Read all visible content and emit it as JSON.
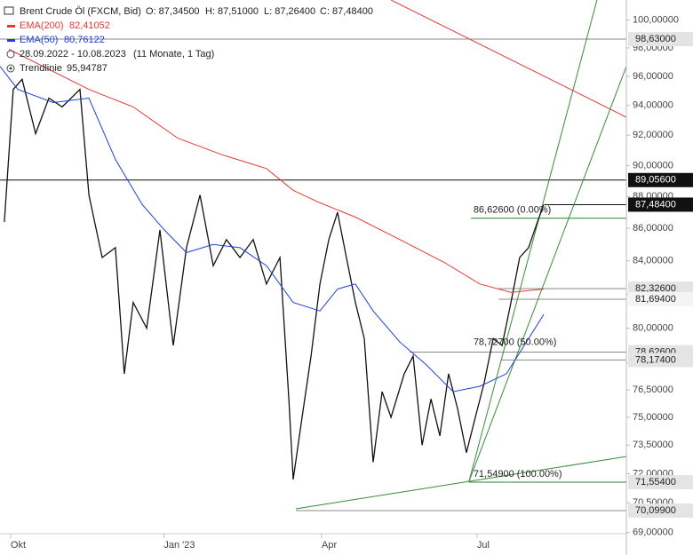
{
  "chart_data": {
    "type": "line",
    "quote": [
      "O: 87,34500",
      "H: 87,51000",
      "L: 87,26400",
      "C: 87,48400"
    ],
    "date_range": "28.09.2022 - 10.08.2023",
    "duration": "(11 Monate, 1 Tag)",
    "trendline_name": "Trendlinie",
    "trendline_value": "95,94787",
    "log_scale": true,
    "xlim": [
      0,
      260
    ],
    "xticks": [
      {
        "value": 4.4,
        "label": "Okt"
      },
      {
        "value": 68,
        "label": "Jan '23"
      },
      {
        "value": 133.5,
        "label": "Apr"
      },
      {
        "value": 198,
        "label": "Jul"
      }
    ],
    "ylim": [
      68.98,
      101.46
    ],
    "yticks": [
      {
        "value": 100,
        "label": "100,00000"
      },
      {
        "value": 98,
        "label": "98,00000"
      },
      {
        "value": 96,
        "label": "96,00000"
      },
      {
        "value": 94,
        "label": "94,00000"
      },
      {
        "value": 92,
        "label": "92,00000"
      },
      {
        "value": 90,
        "label": "90,00000"
      },
      {
        "value": 88,
        "label": "88,00000"
      },
      {
        "value": 86,
        "label": "86,00000"
      },
      {
        "value": 84,
        "label": "84,00000"
      },
      {
        "value": 82,
        "label": "82,00000"
      },
      {
        "value": 80,
        "label": "80,00000"
      },
      {
        "value": 78,
        "label": "78,00000"
      },
      {
        "value": 76.5,
        "label": "76,50000"
      },
      {
        "value": 75,
        "label": "75,00000"
      },
      {
        "value": 73.5,
        "label": "73,50000"
      },
      {
        "value": 72,
        "label": "72,00000"
      },
      {
        "value": 70.5,
        "label": "70,50000"
      },
      {
        "value": 69,
        "label": "69,00000"
      }
    ],
    "series": [
      {
        "name": "Brent Crude Öl (FXCM, Bid)",
        "color": "#111111",
        "x": [
          1.8,
          5.5,
          9.2,
          14.8,
          20.3,
          25.8,
          33.2,
          36.9,
          42.4,
          47.9,
          51.6,
          55.3,
          60.9,
          66.4,
          71.9,
          77.4,
          83,
          88.5,
          94,
          99.6,
          105.1,
          110.6,
          116.2,
          119.9,
          121.7,
          125.4,
          129.1,
          132.8,
          136.5,
          140.1,
          143.8,
          147.5,
          151.2,
          154.9,
          158.6,
          162.3,
          167.8,
          171.5,
          175.2,
          178.9,
          182.6,
          186.2,
          189.9,
          193.6,
          197.3,
          201,
          204.7,
          208.4,
          212.1,
          215.7,
          219.4,
          223.1,
          225.7
        ],
        "values": [
          86.4,
          95.1,
          95.8,
          92.1,
          94.5,
          93.9,
          95.1,
          88.1,
          84.2,
          84.8,
          77.4,
          81.5,
          80.0,
          85.9,
          79.0,
          84.8,
          88.1,
          83.7,
          85.3,
          84.2,
          85.3,
          82.6,
          84.2,
          76.0,
          71.7,
          75.0,
          78.4,
          82.6,
          85.3,
          87.0,
          84.2,
          81.5,
          79.4,
          72.6,
          76.4,
          75.0,
          77.4,
          78.4,
          73.5,
          76.0,
          74.0,
          77.4,
          75.5,
          73.1,
          75.0,
          76.9,
          79.4,
          79.0,
          81.5,
          84.2,
          84.8,
          86.4,
          87.48
        ]
      },
      {
        "name": "EMA(200)",
        "legend_value": "82,41052",
        "color": "#e53935",
        "x": [
          3.7,
          36.9,
          55.3,
          73.8,
          92.2,
          110.6,
          121.7,
          132.8,
          147.5,
          166,
          184.4,
          199.2,
          212.1,
          225.7
        ],
        "values": [
          97.9,
          95.1,
          93.9,
          91.8,
          90.7,
          89.8,
          88.4,
          87.6,
          86.7,
          85.3,
          83.9,
          82.6,
          82.1,
          82.3
        ]
      },
      {
        "name": "EMA(50)",
        "legend_value": "80,76122",
        "color": "#1e40d0",
        "x": [
          0,
          7.4,
          22.1,
          36.9,
          47.9,
          59,
          68.2,
          77.4,
          88.5,
          99.6,
          110.6,
          121.7,
          132.8,
          140.1,
          147.5,
          154.9,
          166,
          177,
          188.1,
          199.2,
          210.2,
          217.6,
          225.7
        ],
        "values": [
          96.7,
          95.1,
          94.2,
          94.5,
          90.4,
          87.5,
          85.9,
          84.5,
          85.0,
          84.8,
          83.7,
          81.5,
          81.0,
          82.3,
          82.6,
          81.0,
          79.2,
          77.9,
          76.4,
          76.7,
          77.4,
          79.0,
          80.8
        ]
      }
    ],
    "levels": [
      {
        "value": 98.63,
        "label": "98,63000",
        "from": 0,
        "color": "#888888",
        "box": "#e4e4e4"
      },
      {
        "value": 89.056,
        "label": "89,05600",
        "from": 0,
        "color": "#111111",
        "box": "#111111"
      },
      {
        "value": 87.484,
        "label": "87,48400",
        "from": 226,
        "color": "#111111",
        "box": "#111111"
      },
      {
        "value": 86.626,
        "from": 195.5,
        "color": "#2e7d32"
      },
      {
        "value": 82.326,
        "label": "82,32600",
        "from": 207,
        "color": "#888888",
        "box": "#e4e4e4"
      },
      {
        "value": 81.694,
        "label": "81,69400",
        "from": 207,
        "color": "#888888",
        "box": "#f4f4f4"
      },
      {
        "value": 78.626,
        "label": "78,62600",
        "from": 170,
        "color": "#888888",
        "box": "#e4e4e4"
      },
      {
        "value": 78.174,
        "label": "78,17400",
        "from": 208,
        "color": "#888888",
        "box": "#e4e4e4"
      },
      {
        "value": 71.554,
        "label": "71,55400",
        "from": 194.7,
        "color": "#2e7d32",
        "box": "#e4e4e4"
      },
      {
        "value": 70.099,
        "label": "70,09900",
        "from": 122.8,
        "color": "#888888",
        "box": "#e4e4e4"
      }
    ],
    "fib_labels": [
      {
        "value": 86.626,
        "label": "86,62600 (0.00%)",
        "x": 196.5
      },
      {
        "value": 78.727,
        "label": "78,72700 (50.00%)",
        "x": 196.5
      },
      {
        "value": 71.549,
        "label": "71,54900 (100.00%)",
        "x": 196.5
      }
    ],
    "drawings": [
      {
        "x": [
          162.3,
          260
        ],
        "values": [
          101.46,
          93.2
        ],
        "color": "#e53935"
      },
      {
        "x": [
          122.8,
          260
        ],
        "values": [
          70.19,
          72.9
        ],
        "color": "#3a8a3a"
      },
      {
        "x": [
          194.7,
          247.8
        ],
        "values": [
          71.6,
          101.46
        ],
        "color": "#3a8a3a"
      },
      {
        "x": [
          194.7,
          260
        ],
        "values": [
          71.6,
          96.7
        ],
        "color": "#3a8a3a"
      }
    ]
  }
}
